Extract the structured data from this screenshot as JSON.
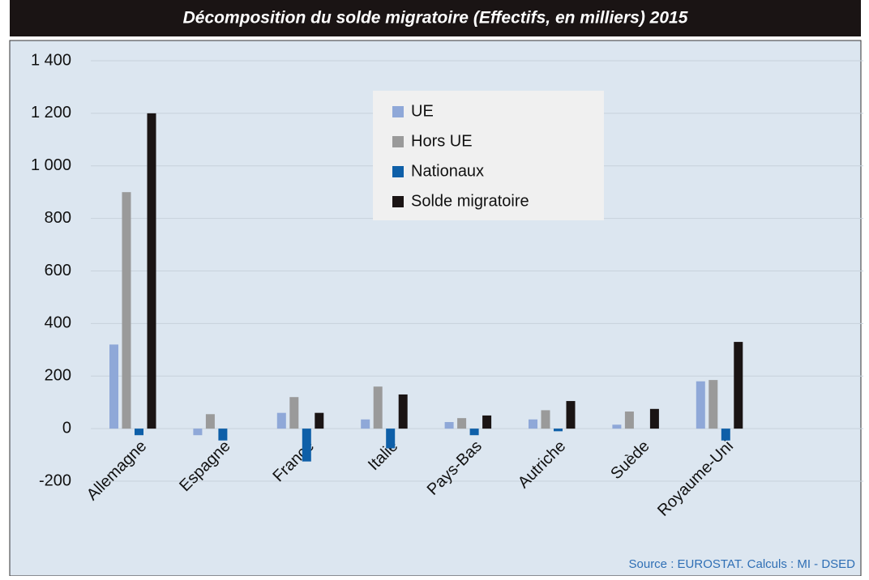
{
  "chart_data": {
    "type": "bar",
    "title": "Décomposition du solde migratoire (Effectifs, en milliers) 2015",
    "source": "Source : EUROSTAT. Calculs : MI - DSED",
    "categories": [
      "Allemagne",
      "Espagne",
      "France",
      "Italie",
      "Pays-Bas",
      "Autriche",
      "Suède",
      "Royaume-Uni"
    ],
    "series": [
      {
        "name": "UE",
        "color": "#8fa8d8",
        "values": [
          320,
          -25,
          60,
          35,
          25,
          35,
          15,
          180
        ]
      },
      {
        "name": "Hors UE",
        "color": "#9a9a9a",
        "values": [
          900,
          55,
          120,
          160,
          40,
          70,
          65,
          185
        ]
      },
      {
        "name": "Nationaux",
        "color": "#0e5fa8",
        "values": [
          -25,
          -45,
          -125,
          -75,
          -25,
          -10,
          0,
          -45
        ]
      },
      {
        "name": "Solde migratoire",
        "color": "#1a1414",
        "values": [
          1200,
          0,
          60,
          130,
          50,
          105,
          75,
          330
        ]
      }
    ],
    "ylim": [
      -200,
      1400
    ],
    "yticks": [
      -200,
      0,
      200,
      400,
      600,
      800,
      {
        "value": 1000,
        "label": "1 000"
      },
      {
        "value": 1200,
        "label": "1 200"
      },
      {
        "value": 1400,
        "label": "1 400"
      }
    ],
    "grid": true
  }
}
